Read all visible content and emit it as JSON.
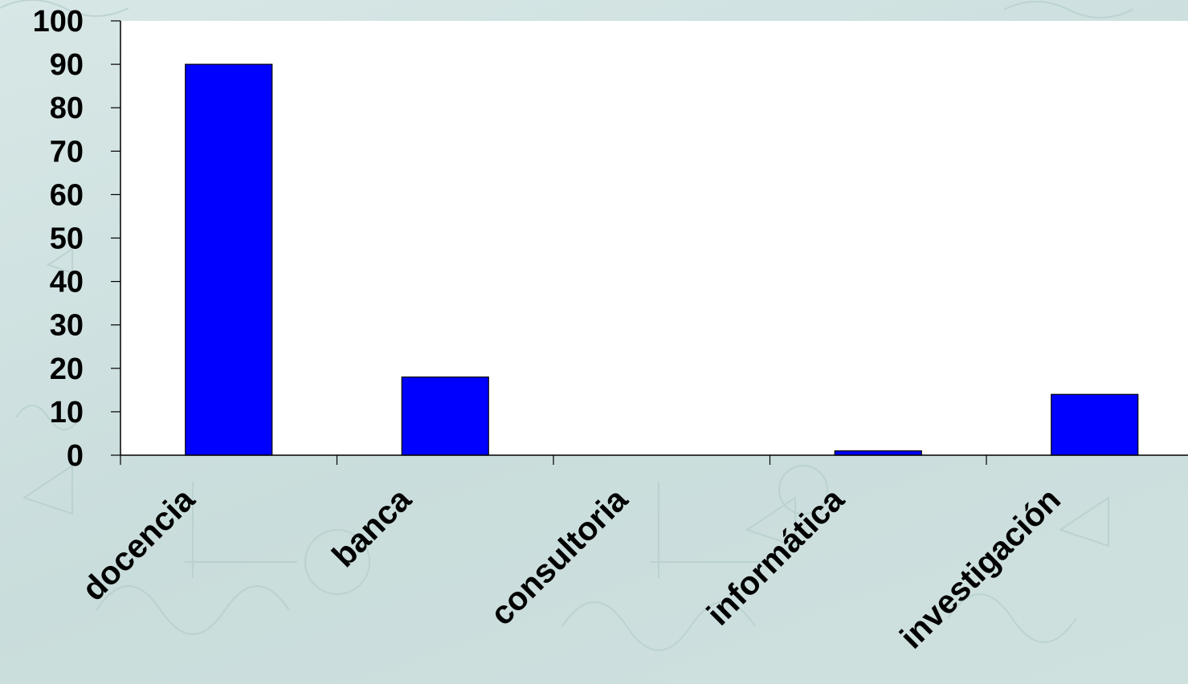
{
  "chart_data": {
    "type": "bar",
    "title": "",
    "xlabel": "",
    "ylabel": "",
    "categories": [
      "docencia",
      "banca",
      "consultoria",
      "informática",
      "investigación"
    ],
    "values": [
      90,
      18,
      0,
      1,
      14
    ],
    "ylim": [
      0,
      100
    ],
    "yticks": [
      "0",
      "10",
      "20",
      "30",
      "40",
      "50",
      "60",
      "70",
      "80",
      "90",
      "100"
    ],
    "grid": false,
    "legend": "none",
    "colors": {
      "bar": "#0000ff",
      "plot_background": "#ffffff",
      "slide_background": "#d2e3e2",
      "text": "#000000"
    }
  }
}
